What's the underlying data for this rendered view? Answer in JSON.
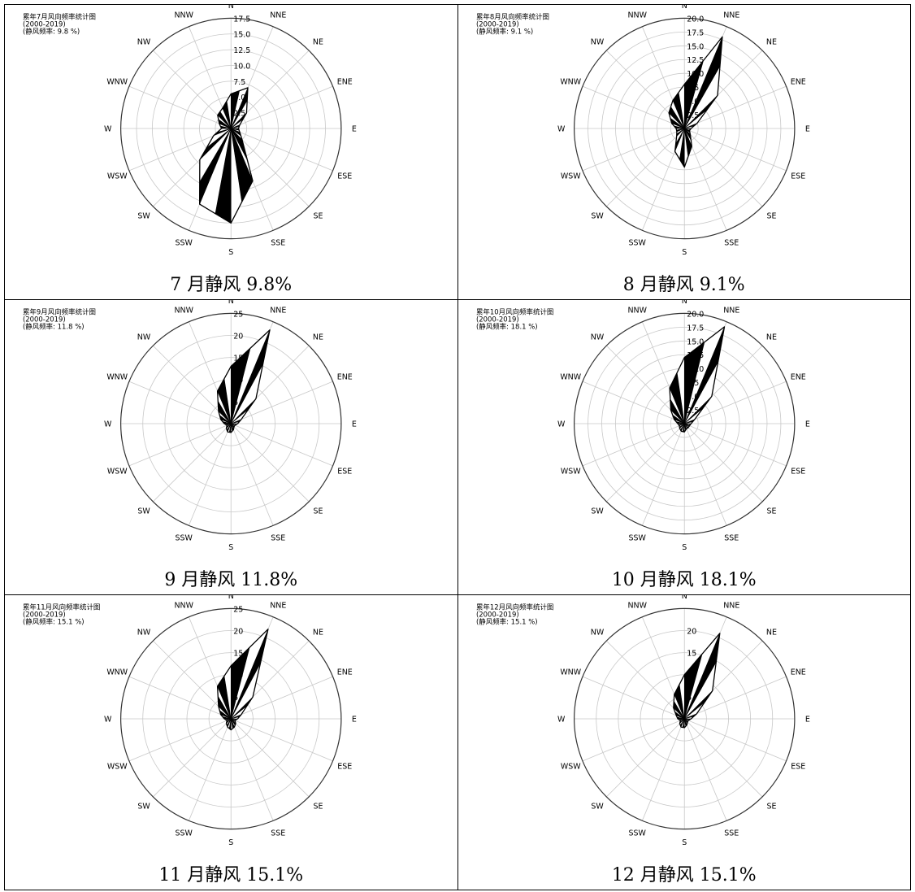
{
  "chart_data": [
    {
      "type": "wind-rose",
      "title": "累年7月风向频率统计图",
      "subtitle": "(2000-2019)",
      "calm_note": "(静风频率: 9.8 %)",
      "caption": "7 月静风 9.8%",
      "rmax": 17.5,
      "rticks": [
        2.5,
        5.0,
        7.5,
        10.0,
        12.5,
        15.0,
        17.5
      ],
      "rtick_labels": [
        "2.5",
        "5.0",
        "7.5",
        "10.0",
        "12.5",
        "15.0",
        "17.5"
      ],
      "directions": [
        "N",
        "NNE",
        "NE",
        "ENE",
        "E",
        "ESE",
        "SE",
        "SSE",
        "S",
        "SSW",
        "SW",
        "WSW",
        "W",
        "WNW",
        "NW",
        "NNW"
      ],
      "values": [
        5.5,
        7.0,
        3.5,
        1.5,
        1.2,
        1.5,
        2.5,
        9.0,
        15.0,
        13.0,
        7.0,
        3.0,
        1.5,
        2.0,
        3.0,
        3.5
      ]
    },
    {
      "type": "wind-rose",
      "title": "累年8月风向频率统计图",
      "subtitle": "(2000-2019)",
      "calm_note": "(静风频率: 9.1 %)",
      "caption": "8 月静风 9.1%",
      "rmax": 20.0,
      "rticks": [
        2.5,
        5.0,
        7.5,
        10.0,
        12.5,
        15.0,
        17.5,
        20.0
      ],
      "rtick_labels": [
        "2.5",
        "5.0",
        "7.5",
        "10.0",
        "12.5",
        "15.0",
        "17.5",
        "20.0"
      ],
      "directions": [
        "N",
        "NNE",
        "NE",
        "ENE",
        "E",
        "ESE",
        "SE",
        "SSE",
        "S",
        "SSW",
        "SW",
        "WSW",
        "W",
        "WNW",
        "NW",
        "NNW"
      ],
      "values": [
        8.0,
        18.0,
        8.5,
        2.5,
        1.2,
        1.0,
        1.5,
        3.5,
        7.0,
        4.5,
        2.0,
        1.5,
        1.5,
        2.5,
        4.0,
        5.5
      ]
    },
    {
      "type": "wind-rose",
      "title": "累年9月风向频率统计图",
      "subtitle": "(2000-2019)",
      "calm_note": "(静风频率: 11.8 %)",
      "caption": "9 月静风 11.8%",
      "rmax": 25,
      "rticks": [
        5,
        10,
        15,
        20,
        25
      ],
      "rtick_labels": [
        "5",
        "10",
        "15",
        "20",
        "25"
      ],
      "directions": [
        "N",
        "NNE",
        "NE",
        "ENE",
        "E",
        "ESE",
        "SE",
        "SSE",
        "S",
        "SSW",
        "SW",
        "WSW",
        "W",
        "WNW",
        "NW",
        "NNW"
      ],
      "values": [
        13.0,
        23.0,
        8.0,
        2.5,
        1.5,
        1.0,
        1.0,
        1.5,
        2.0,
        2.0,
        1.5,
        1.0,
        1.5,
        2.5,
        4.0,
        8.0
      ]
    },
    {
      "type": "wind-rose",
      "title": "累年10月风向频率统计图",
      "subtitle": "(2000-2019)",
      "calm_note": "(静风频率: 18.1 %)",
      "caption": "10 月静风 18.1%",
      "rmax": 20.0,
      "rticks": [
        2.5,
        5.0,
        7.5,
        10.0,
        12.5,
        15.0,
        17.5,
        20.0
      ],
      "rtick_labels": [
        "2.5",
        "5.0",
        "7.5",
        "10.0",
        "12.5",
        "15.0",
        "17.5",
        "20.0"
      ],
      "directions": [
        "N",
        "NNE",
        "NE",
        "ENE",
        "E",
        "ESE",
        "SE",
        "SSE",
        "S",
        "SSW",
        "SW",
        "WSW",
        "W",
        "WNW",
        "NW",
        "NNW"
      ],
      "values": [
        12.0,
        19.0,
        7.0,
        2.0,
        1.2,
        1.0,
        1.0,
        1.0,
        1.5,
        1.5,
        1.2,
        1.0,
        1.2,
        2.0,
        3.5,
        7.0
      ]
    },
    {
      "type": "wind-rose",
      "title": "累年11月风向频率统计图",
      "subtitle": "(2000-2019)",
      "calm_note": "(静风频率: 15.1 %)",
      "caption": "11 月静风 15.1%",
      "rmax": 25,
      "rticks": [
        5,
        10,
        15,
        20,
        25
      ],
      "rtick_labels": [
        "5",
        "10",
        "15",
        "20",
        "25"
      ],
      "directions": [
        "N",
        "NNE",
        "NE",
        "ENE",
        "E",
        "ESE",
        "SE",
        "SSE",
        "S",
        "SSW",
        "SW",
        "WSW",
        "W",
        "WNW",
        "NW",
        "NNW"
      ],
      "values": [
        12.0,
        22.0,
        7.0,
        2.5,
        1.5,
        1.0,
        1.5,
        2.0,
        2.5,
        2.0,
        1.5,
        1.0,
        1.5,
        2.5,
        4.0,
        8.0
      ]
    },
    {
      "type": "wind-rose",
      "title": "累年12月风向频率统计图",
      "subtitle": "(2000-2019)",
      "calm_note": "(静风频率: 15.1 %)",
      "caption": "12 月静风 15.1%",
      "rmax": 25,
      "rticks": [
        5,
        10,
        15,
        20
      ],
      "rtick_labels": [
        "5",
        "10",
        "15",
        "20"
      ],
      "directions": [
        "N",
        "NNE",
        "NE",
        "ENE",
        "E",
        "ESE",
        "SE",
        "SSE",
        "S",
        "SSW",
        "SW",
        "WSW",
        "W",
        "WNW",
        "NW",
        "NNW"
      ],
      "values": [
        10.0,
        21.0,
        9.0,
        3.0,
        1.5,
        1.0,
        1.0,
        1.5,
        2.0,
        2.0,
        1.5,
        1.0,
        1.5,
        2.0,
        3.5,
        6.0
      ]
    }
  ]
}
